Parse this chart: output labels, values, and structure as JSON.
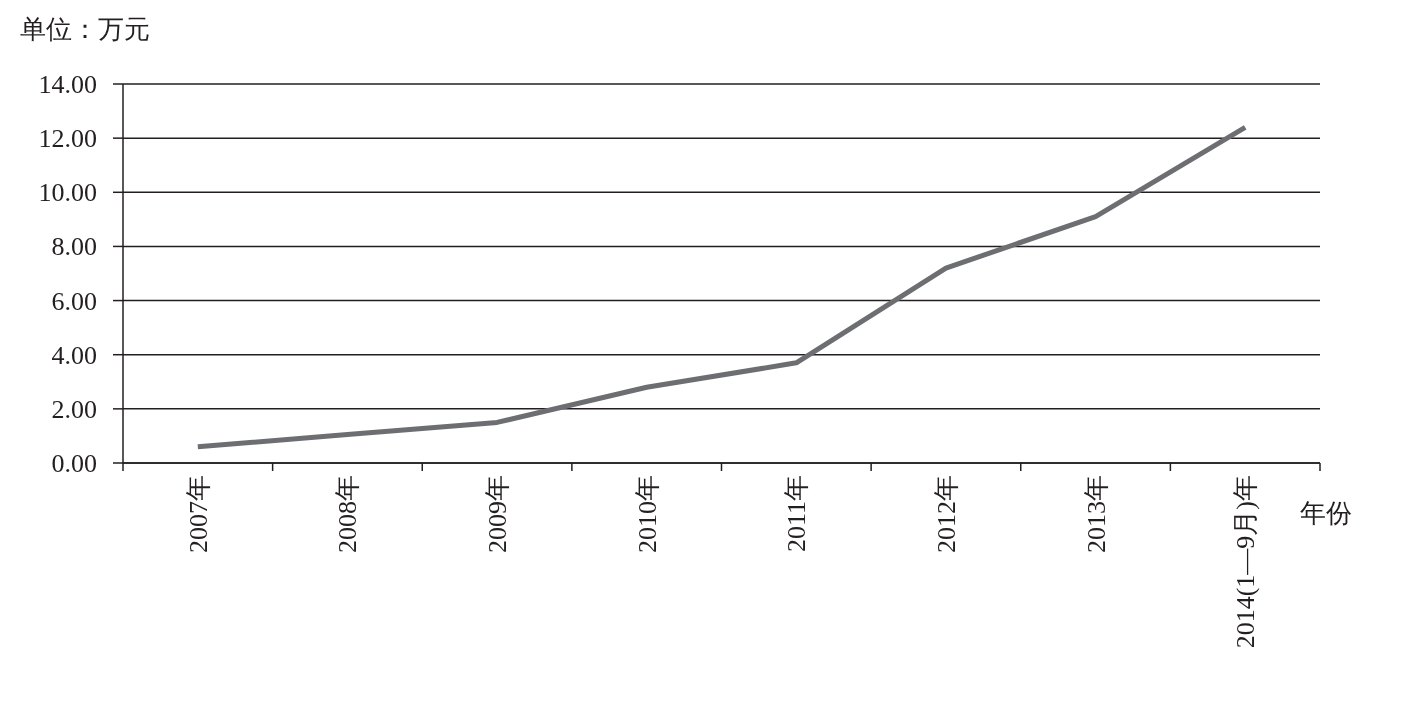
{
  "chart_data": {
    "type": "line",
    "ylabel": "单位：万元",
    "xlabel": "年份",
    "categories": [
      "2007年",
      "2008年",
      "2009年",
      "2010年",
      "2011年",
      "2012年",
      "2013年",
      "2014(1—9月)年"
    ],
    "series": [
      {
        "color": "#6d6e71",
        "values": [
          0.6,
          1.05,
          1.5,
          2.8,
          3.7,
          7.2,
          9.1,
          12.4
        ]
      }
    ],
    "ylim": [
      0,
      14
    ],
    "yticks": [
      {
        "value": 0,
        "label": "0.00"
      },
      {
        "value": 2,
        "label": "2.00"
      },
      {
        "value": 4,
        "label": "4.00"
      },
      {
        "value": 6,
        "label": "6.00"
      },
      {
        "value": 8,
        "label": "8.00"
      },
      {
        "value": 10,
        "label": "10.00"
      },
      {
        "value": 12,
        "label": "12.00"
      },
      {
        "value": 14,
        "label": "14.00"
      }
    ],
    "grid": "y",
    "marker": "none",
    "line_style": "solid"
  }
}
